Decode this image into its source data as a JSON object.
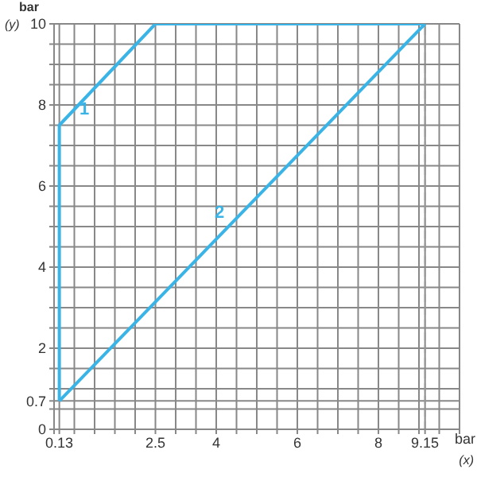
{
  "chart_data": {
    "type": "line",
    "xlabel": "bar",
    "ylabel": "bar",
    "annotations": [
      "1",
      "2",
      "(y)",
      "(x)"
    ],
    "series": [
      {
        "color": "#3ab4e6",
        "x": [
          0.13,
          0.13,
          2.5,
          9.15
        ],
        "values": [
          0.7,
          7.5,
          10,
          10
        ]
      },
      {
        "color": "#3ab4e6",
        "x": [
          0.13,
          9.15
        ],
        "values": [
          0.7,
          10
        ]
      }
    ],
    "xlim": [
      0,
      10
    ],
    "ylim": [
      0,
      10
    ],
    "xticks": [
      {
        "value": 0,
        "label": null
      },
      0.13,
      {
        "value": 0.5,
        "label": null
      },
      {
        "value": 1,
        "label": null
      },
      {
        "value": 1.5,
        "label": null
      },
      {
        "value": 2,
        "label": null
      },
      2.5,
      {
        "value": 3,
        "label": null
      },
      {
        "value": 3.5,
        "label": null
      },
      4,
      {
        "value": 4.5,
        "label": null
      },
      {
        "value": 5,
        "label": null
      },
      {
        "value": 5.5,
        "label": null
      },
      6,
      {
        "value": 6.5,
        "label": null
      },
      {
        "value": 7,
        "label": null
      },
      {
        "value": 7.5,
        "label": null
      },
      8,
      {
        "value": 8.5,
        "label": null
      },
      {
        "value": 9,
        "label": null
      },
      9.15,
      {
        "value": 9.5,
        "label": null
      },
      {
        "value": 10,
        "label": null
      }
    ],
    "yticks": [
      0,
      {
        "value": 0.5,
        "label": null
      },
      0.7,
      {
        "value": 1,
        "label": null
      },
      {
        "value": 1.5,
        "label": null
      },
      2,
      {
        "value": 2.5,
        "label": null
      },
      {
        "value": 3,
        "label": null
      },
      {
        "value": 3.5,
        "label": null
      },
      4,
      {
        "value": 4.5,
        "label": null
      },
      {
        "value": 5,
        "label": null
      },
      {
        "value": 5.5,
        "label": null
      },
      6,
      {
        "value": 6.5,
        "label": null
      },
      {
        "value": 7,
        "label": null
      },
      {
        "value": 7.5,
        "label": null
      },
      8,
      {
        "value": 8.5,
        "label": null
      },
      {
        "value": 9,
        "label": null
      },
      {
        "value": 9.5,
        "label": null
      },
      10
    ],
    "ref_lines": [
      {
        "axis": "x",
        "value": 9.15,
        "line_style": "dashed",
        "color": "#999999"
      }
    ],
    "grid": true,
    "marker": "none",
    "line_style": "solid"
  }
}
